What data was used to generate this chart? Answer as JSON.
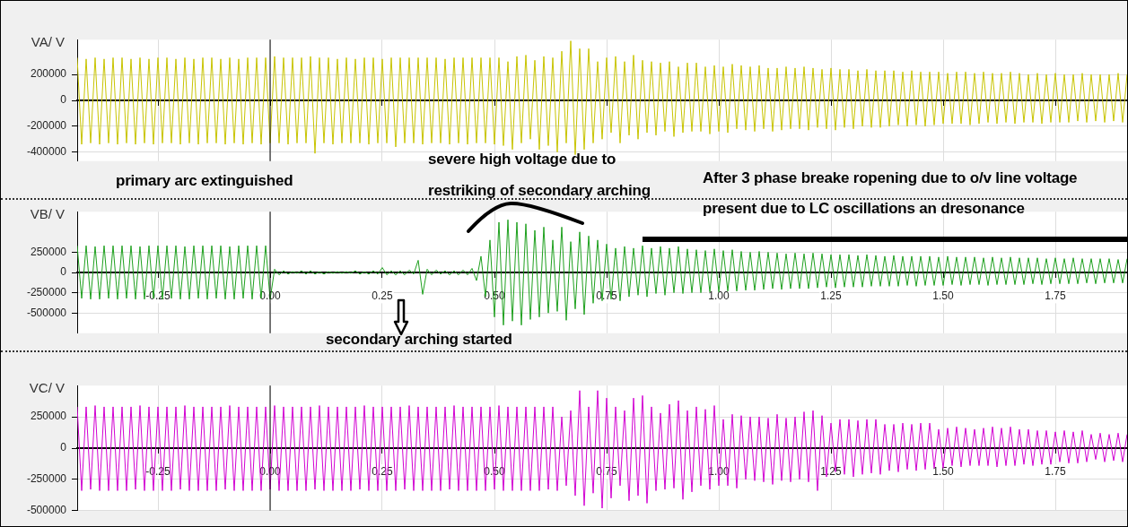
{
  "chart_data": [
    {
      "type": "line",
      "ylabel": "VA/ V",
      "legend": false,
      "grid": true,
      "marker": "none",
      "tick_labels": "y",
      "xlim": [
        -0.43,
        1.91
      ],
      "xticks": [
        {
          "value": -0.25,
          "label": null
        },
        {
          "value": 0,
          "label": null
        },
        {
          "value": 0.25,
          "label": null
        },
        {
          "value": 0.5,
          "label": null
        },
        {
          "value": 0.75,
          "label": null
        },
        {
          "value": 1,
          "label": null
        },
        {
          "value": 1.25,
          "label": null
        },
        {
          "value": 1.5,
          "label": null
        },
        {
          "value": 1.75,
          "label": null
        }
      ],
      "ylim": [
        -470000,
        470000
      ],
      "yticks": [
        200000,
        0,
        -200000,
        -400000
      ],
      "ref_lines": [
        {
          "axis": "x",
          "value": 0,
          "color": "#000000"
        }
      ],
      "x": [
        -0.43,
        -0.42,
        -0.41,
        -0.4,
        -0.39,
        -0.38,
        -0.37,
        -0.36,
        -0.35,
        -0.34,
        -0.33,
        -0.32,
        -0.31,
        -0.3,
        -0.29,
        -0.28,
        -0.27,
        -0.26,
        -0.25,
        -0.24,
        -0.23,
        -0.22,
        -0.21,
        -0.2,
        -0.19,
        -0.18,
        -0.17,
        -0.16,
        -0.15,
        -0.14,
        -0.13,
        -0.12,
        -0.11,
        -0.1,
        -0.09,
        -0.08,
        -0.07,
        -0.06,
        -0.05,
        -0.04,
        -0.03,
        -0.02,
        -0.01,
        0,
        0.01,
        0.02,
        0.03,
        0.04,
        0.05,
        0.06,
        0.07,
        0.08,
        0.09,
        0.1,
        0.11,
        0.12,
        0.13,
        0.14,
        0.15,
        0.16,
        0.17,
        0.18,
        0.19,
        0.2,
        0.21,
        0.22,
        0.23,
        0.24,
        0.25,
        0.26,
        0.27,
        0.28,
        0.29,
        0.3,
        0.31,
        0.32,
        0.33,
        0.34,
        0.35,
        0.36,
        0.37,
        0.38,
        0.39,
        0.4,
        0.41,
        0.42,
        0.43,
        0.44,
        0.45,
        0.46,
        0.47,
        0.48,
        0.49,
        0.5,
        0.51,
        0.52,
        0.53,
        0.54,
        0.55,
        0.56,
        0.57,
        0.58,
        0.59,
        0.6,
        0.61,
        0.62,
        0.63,
        0.64,
        0.65,
        0.66,
        0.67,
        0.68,
        0.69,
        0.7,
        0.71,
        0.72,
        0.73,
        0.74,
        0.75,
        0.76,
        0.77,
        0.78,
        0.79,
        0.8,
        0.81,
        0.82,
        0.83,
        0.84,
        0.85,
        0.86,
        0.87,
        0.88,
        0.89,
        0.9,
        0.91,
        0.92,
        0.93,
        0.94,
        0.95,
        0.96,
        0.97,
        0.98,
        0.99,
        1,
        1.01,
        1.02,
        1.03,
        1.04,
        1.05,
        1.06,
        1.07,
        1.08,
        1.09,
        1.1,
        1.11,
        1.12,
        1.13,
        1.14,
        1.15,
        1.16,
        1.17,
        1.18,
        1.19,
        1.2,
        1.21,
        1.22,
        1.23,
        1.24,
        1.25,
        1.26,
        1.27,
        1.28,
        1.29,
        1.3,
        1.31,
        1.32,
        1.33,
        1.34,
        1.35,
        1.36,
        1.37,
        1.38,
        1.39,
        1.4,
        1.41,
        1.42,
        1.43,
        1.44,
        1.45,
        1.46,
        1.47,
        1.48,
        1.49,
        1.5,
        1.51,
        1.52,
        1.53,
        1.54,
        1.55,
        1.56,
        1.57,
        1.58,
        1.59,
        1.6,
        1.61,
        1.62,
        1.63,
        1.64,
        1.65,
        1.66,
        1.67,
        1.68,
        1.69,
        1.7,
        1.71,
        1.72,
        1.73,
        1.74,
        1.75,
        1.76,
        1.77,
        1.78,
        1.79,
        1.8,
        1.81,
        1.82,
        1.83,
        1.84,
        1.85,
        1.86,
        1.87,
        1.88,
        1.89,
        1.9,
        1.91
      ],
      "series": [
        {
          "color": "#c8c400",
          "values": [
            330000,
            -340000,
            320000,
            -330000,
            330000,
            -340000,
            320000,
            -330000,
            330000,
            -340000,
            330000,
            -330000,
            320000,
            -340000,
            330000,
            -330000,
            320000,
            -340000,
            330000,
            -330000,
            330000,
            -330000,
            320000,
            -340000,
            330000,
            -330000,
            320000,
            -340000,
            330000,
            -330000,
            330000,
            -330000,
            320000,
            -340000,
            330000,
            -330000,
            320000,
            -340000,
            330000,
            -330000,
            330000,
            -340000,
            330000,
            -330000,
            340000,
            -330000,
            330000,
            -340000,
            330000,
            -330000,
            330000,
            -330000,
            340000,
            -410000,
            330000,
            -330000,
            330000,
            -340000,
            320000,
            -330000,
            330000,
            -330000,
            320000,
            -330000,
            330000,
            -340000,
            330000,
            -330000,
            320000,
            -330000,
            330000,
            -360000,
            330000,
            -330000,
            330000,
            -330000,
            330000,
            -340000,
            330000,
            -330000,
            330000,
            -330000,
            320000,
            -340000,
            330000,
            -330000,
            330000,
            -340000,
            330000,
            -330000,
            330000,
            -330000,
            330000,
            -340000,
            330000,
            -350000,
            300000,
            -380000,
            340000,
            -330000,
            350000,
            -300000,
            310000,
            -380000,
            340000,
            -350000,
            330000,
            -400000,
            380000,
            -330000,
            460000,
            -420000,
            400000,
            -380000,
            400000,
            -330000,
            300000,
            -300000,
            330000,
            -250000,
            340000,
            -330000,
            300000,
            -270000,
            350000,
            -300000,
            310000,
            -250000,
            300000,
            -270000,
            290000,
            -240000,
            300000,
            -280000,
            260000,
            -250000,
            290000,
            -240000,
            290000,
            -240000,
            260000,
            -260000,
            270000,
            -240000,
            260000,
            -250000,
            280000,
            -220000,
            270000,
            -230000,
            260000,
            -240000,
            270000,
            -220000,
            250000,
            -240000,
            250000,
            -230000,
            260000,
            -220000,
            250000,
            -220000,
            260000,
            -230000,
            250000,
            -210000,
            240000,
            -220000,
            250000,
            -230000,
            240000,
            -210000,
            240000,
            -220000,
            230000,
            -200000,
            240000,
            -210000,
            230000,
            -210000,
            230000,
            -200000,
            230000,
            -190000,
            220000,
            -200000,
            230000,
            -190000,
            220000,
            -200000,
            220000,
            -190000,
            220000,
            -180000,
            210000,
            -180000,
            220000,
            -180000,
            220000,
            -190000,
            210000,
            -180000,
            220000,
            -170000,
            210000,
            -180000,
            210000,
            -170000,
            220000,
            -180000,
            210000,
            -170000,
            200000,
            -170000,
            210000,
            -180000,
            200000,
            -170000,
            210000,
            -170000,
            200000,
            -170000,
            200000,
            -160000,
            210000,
            -170000,
            200000,
            -160000,
            200000,
            -170000,
            200000,
            -160000,
            210000,
            -170000,
            200000
          ]
        }
      ]
    },
    {
      "type": "line",
      "ylabel": "VB/ V",
      "legend": false,
      "grid": true,
      "marker": "none",
      "xlim": [
        -0.43,
        1.91
      ],
      "xticks": [
        -0.25,
        {
          "value": 0,
          "label": "0.00"
        },
        0.25,
        {
          "value": 0.5,
          "label": "0.50"
        },
        0.75,
        {
          "value": 1,
          "label": "1.00"
        },
        1.25,
        {
          "value": 1.5,
          "label": "1.50"
        },
        1.75
      ],
      "ylim": [
        -750000,
        750000
      ],
      "yticks": [
        250000,
        0,
        -250000,
        -500000
      ],
      "ref_lines": [
        {
          "axis": "x",
          "value": 0,
          "color": "#000000"
        }
      ],
      "annotations": [
        "primary arc extinguished",
        "severe high voltage due to restriking of secondary arching",
        "secondary arching started",
        "After 3 phase breake ropening due to o/v line voltage present due to LC oscillations an dresonance"
      ],
      "x": [
        -0.43,
        -0.42,
        -0.41,
        -0.4,
        -0.39,
        -0.38,
        -0.37,
        -0.36,
        -0.35,
        -0.34,
        -0.33,
        -0.32,
        -0.31,
        -0.3,
        -0.29,
        -0.28,
        -0.27,
        -0.26,
        -0.25,
        -0.24,
        -0.23,
        -0.22,
        -0.21,
        -0.2,
        -0.19,
        -0.18,
        -0.17,
        -0.16,
        -0.15,
        -0.14,
        -0.13,
        -0.12,
        -0.11,
        -0.1,
        -0.09,
        -0.08,
        -0.07,
        -0.06,
        -0.05,
        -0.04,
        -0.03,
        -0.02,
        -0.01,
        0,
        0.01,
        0.02,
        0.03,
        0.04,
        0.05,
        0.06,
        0.07,
        0.08,
        0.09,
        0.1,
        0.11,
        0.12,
        0.13,
        0.14,
        0.15,
        0.16,
        0.17,
        0.18,
        0.19,
        0.2,
        0.21,
        0.22,
        0.23,
        0.24,
        0.25,
        0.26,
        0.27,
        0.28,
        0.29,
        0.3,
        0.31,
        0.32,
        0.33,
        0.34,
        0.35,
        0.36,
        0.37,
        0.38,
        0.39,
        0.4,
        0.41,
        0.42,
        0.43,
        0.44,
        0.45,
        0.46,
        0.47,
        0.48,
        0.49,
        0.5,
        0.51,
        0.52,
        0.53,
        0.54,
        0.55,
        0.56,
        0.57,
        0.58,
        0.59,
        0.6,
        0.61,
        0.62,
        0.63,
        0.64,
        0.65,
        0.66,
        0.67,
        0.68,
        0.69,
        0.7,
        0.71,
        0.72,
        0.73,
        0.74,
        0.75,
        0.76,
        0.77,
        0.78,
        0.79,
        0.8,
        0.81,
        0.82,
        0.83,
        0.84,
        0.85,
        0.86,
        0.87,
        0.88,
        0.89,
        0.9,
        0.91,
        0.92,
        0.93,
        0.94,
        0.95,
        0.96,
        0.97,
        0.98,
        0.99,
        1,
        1.01,
        1.02,
        1.03,
        1.04,
        1.05,
        1.06,
        1.07,
        1.08,
        1.09,
        1.1,
        1.11,
        1.12,
        1.13,
        1.14,
        1.15,
        1.16,
        1.17,
        1.18,
        1.19,
        1.2,
        1.21,
        1.22,
        1.23,
        1.24,
        1.25,
        1.26,
        1.27,
        1.28,
        1.29,
        1.3,
        1.31,
        1.32,
        1.33,
        1.34,
        1.35,
        1.36,
        1.37,
        1.38,
        1.39,
        1.4,
        1.41,
        1.42,
        1.43,
        1.44,
        1.45,
        1.46,
        1.47,
        1.48,
        1.49,
        1.5,
        1.51,
        1.52,
        1.53,
        1.54,
        1.55,
        1.56,
        1.57,
        1.58,
        1.59,
        1.6,
        1.61,
        1.62,
        1.63,
        1.64,
        1.65,
        1.66,
        1.67,
        1.68,
        1.69,
        1.7,
        1.71,
        1.72,
        1.73,
        1.74,
        1.75,
        1.76,
        1.77,
        1.78,
        1.79,
        1.8,
        1.81,
        1.82,
        1.83,
        1.84,
        1.85,
        1.86,
        1.87,
        1.88,
        1.89,
        1.9,
        1.91
      ],
      "series": [
        {
          "color": "#1ea01e",
          "values": [
            330000,
            -320000,
            330000,
            -330000,
            320000,
            -330000,
            330000,
            -320000,
            330000,
            -330000,
            330000,
            -320000,
            330000,
            -330000,
            320000,
            -330000,
            330000,
            -320000,
            330000,
            -330000,
            330000,
            -320000,
            330000,
            -330000,
            320000,
            -330000,
            330000,
            -320000,
            330000,
            -330000,
            330000,
            -320000,
            330000,
            -330000,
            320000,
            -330000,
            330000,
            -320000,
            330000,
            -330000,
            330000,
            -320000,
            330000,
            -330000,
            40000,
            -30000,
            20000,
            -20000,
            10000,
            -10000,
            20000,
            -20000,
            20000,
            -20000,
            10000,
            -20000,
            10000,
            -10000,
            10000,
            -10000,
            10000,
            -10000,
            20000,
            -20000,
            10000,
            -20000,
            20000,
            -20000,
            60000,
            -30000,
            20000,
            -30000,
            20000,
            -30000,
            30000,
            -20000,
            150000,
            -270000,
            40000,
            -30000,
            30000,
            -20000,
            20000,
            -30000,
            20000,
            -30000,
            30000,
            -30000,
            50000,
            -100000,
            200000,
            -300000,
            400000,
            -550000,
            620000,
            -650000,
            650000,
            -600000,
            620000,
            -650000,
            600000,
            -580000,
            520000,
            -550000,
            560000,
            -500000,
            400000,
            -480000,
            560000,
            -590000,
            380000,
            -450000,
            500000,
            -520000,
            450000,
            -380000,
            400000,
            -350000,
            350000,
            -330000,
            300000,
            -350000,
            320000,
            -300000,
            300000,
            -280000,
            330000,
            -300000,
            300000,
            -260000,
            320000,
            -280000,
            300000,
            -250000,
            320000,
            -260000,
            290000,
            -250000,
            280000,
            -250000,
            270000,
            -240000,
            290000,
            -240000,
            270000,
            -230000,
            280000,
            -230000,
            260000,
            -220000,
            250000,
            -220000,
            260000,
            -210000,
            250000,
            -200000,
            240000,
            -210000,
            230000,
            -200000,
            240000,
            -200000,
            230000,
            -200000,
            240000,
            -190000,
            230000,
            -180000,
            220000,
            -190000,
            220000,
            -180000,
            220000,
            -180000,
            210000,
            -180000,
            220000,
            -170000,
            210000,
            -170000,
            200000,
            -170000,
            210000,
            -170000,
            200000,
            -160000,
            200000,
            -170000,
            200000,
            -160000,
            200000,
            -160000,
            190000,
            -160000,
            200000,
            -150000,
            190000,
            -160000,
            190000,
            -150000,
            190000,
            -150000,
            180000,
            -160000,
            190000,
            -150000,
            180000,
            -150000,
            190000,
            -150000,
            180000,
            -150000,
            180000,
            -140000,
            180000,
            -150000,
            170000,
            -140000,
            180000,
            -140000,
            170000,
            -140000,
            180000,
            -140000,
            170000,
            -130000,
            170000,
            -140000,
            170000,
            -130000,
            170000,
            -130000,
            160000,
            -130000,
            170000
          ]
        }
      ]
    },
    {
      "type": "line",
      "ylabel": "VC/ V",
      "legend": false,
      "grid": true,
      "marker": "none",
      "xlim": [
        -0.43,
        1.91
      ],
      "xticks": [
        -0.25,
        {
          "value": 0,
          "label": "0.00"
        },
        0.25,
        {
          "value": 0.5,
          "label": "0.50"
        },
        0.75,
        {
          "value": 1,
          "label": "1.00"
        },
        1.25,
        {
          "value": 1.5,
          "label": "1.50"
        },
        1.75
      ],
      "ylim": [
        -500000,
        500000
      ],
      "yticks": [
        250000,
        0,
        -250000,
        -500000
      ],
      "ref_lines": [
        {
          "axis": "x",
          "value": 0,
          "color": "#000000"
        }
      ],
      "x": [
        -0.43,
        -0.42,
        -0.41,
        -0.4,
        -0.39,
        -0.38,
        -0.37,
        -0.36,
        -0.35,
        -0.34,
        -0.33,
        -0.32,
        -0.31,
        -0.3,
        -0.29,
        -0.28,
        -0.27,
        -0.26,
        -0.25,
        -0.24,
        -0.23,
        -0.22,
        -0.21,
        -0.2,
        -0.19,
        -0.18,
        -0.17,
        -0.16,
        -0.15,
        -0.14,
        -0.13,
        -0.12,
        -0.11,
        -0.1,
        -0.09,
        -0.08,
        -0.07,
        -0.06,
        -0.05,
        -0.04,
        -0.03,
        -0.02,
        -0.01,
        0,
        0.01,
        0.02,
        0.03,
        0.04,
        0.05,
        0.06,
        0.07,
        0.08,
        0.09,
        0.1,
        0.11,
        0.12,
        0.13,
        0.14,
        0.15,
        0.16,
        0.17,
        0.18,
        0.19,
        0.2,
        0.21,
        0.22,
        0.23,
        0.24,
        0.25,
        0.26,
        0.27,
        0.28,
        0.29,
        0.3,
        0.31,
        0.32,
        0.33,
        0.34,
        0.35,
        0.36,
        0.37,
        0.38,
        0.39,
        0.4,
        0.41,
        0.42,
        0.43,
        0.44,
        0.45,
        0.46,
        0.47,
        0.48,
        0.49,
        0.5,
        0.51,
        0.52,
        0.53,
        0.54,
        0.55,
        0.56,
        0.57,
        0.58,
        0.59,
        0.6,
        0.61,
        0.62,
        0.63,
        0.64,
        0.65,
        0.66,
        0.67,
        0.68,
        0.69,
        0.7,
        0.71,
        0.72,
        0.73,
        0.74,
        0.75,
        0.76,
        0.77,
        0.78,
        0.79,
        0.8,
        0.81,
        0.82,
        0.83,
        0.84,
        0.85,
        0.86,
        0.87,
        0.88,
        0.89,
        0.9,
        0.91,
        0.92,
        0.93,
        0.94,
        0.95,
        0.96,
        0.97,
        0.98,
        0.99,
        1,
        1.01,
        1.02,
        1.03,
        1.04,
        1.05,
        1.06,
        1.07,
        1.08,
        1.09,
        1.1,
        1.11,
        1.12,
        1.13,
        1.14,
        1.15,
        1.16,
        1.17,
        1.18,
        1.19,
        1.2,
        1.21,
        1.22,
        1.23,
        1.24,
        1.25,
        1.26,
        1.27,
        1.28,
        1.29,
        1.3,
        1.31,
        1.32,
        1.33,
        1.34,
        1.35,
        1.36,
        1.37,
        1.38,
        1.39,
        1.4,
        1.41,
        1.42,
        1.43,
        1.44,
        1.45,
        1.46,
        1.47,
        1.48,
        1.49,
        1.5,
        1.51,
        1.52,
        1.53,
        1.54,
        1.55,
        1.56,
        1.57,
        1.58,
        1.59,
        1.6,
        1.61,
        1.62,
        1.63,
        1.64,
        1.65,
        1.66,
        1.67,
        1.68,
        1.69,
        1.7,
        1.71,
        1.72,
        1.73,
        1.74,
        1.75,
        1.76,
        1.77,
        1.78,
        1.79,
        1.8,
        1.81,
        1.82,
        1.83,
        1.84,
        1.85,
        1.86,
        1.87,
        1.88,
        1.89,
        1.9,
        1.91
      ],
      "series": [
        {
          "color": "#d200d2",
          "values": [
            330000,
            -340000,
            330000,
            -330000,
            340000,
            -340000,
            330000,
            -340000,
            330000,
            -340000,
            330000,
            -340000,
            330000,
            -330000,
            340000,
            -340000,
            330000,
            -340000,
            330000,
            -340000,
            330000,
            -340000,
            330000,
            -330000,
            340000,
            -340000,
            330000,
            -340000,
            330000,
            -340000,
            330000,
            -340000,
            330000,
            -330000,
            340000,
            -340000,
            330000,
            -340000,
            330000,
            -340000,
            330000,
            -340000,
            330000,
            -330000,
            340000,
            -340000,
            330000,
            -340000,
            330000,
            -340000,
            330000,
            -340000,
            330000,
            -330000,
            340000,
            -340000,
            330000,
            -340000,
            330000,
            -340000,
            330000,
            -340000,
            330000,
            -330000,
            340000,
            -340000,
            330000,
            -340000,
            330000,
            -340000,
            330000,
            -340000,
            330000,
            -330000,
            340000,
            -340000,
            330000,
            -340000,
            330000,
            -340000,
            330000,
            -340000,
            330000,
            -330000,
            340000,
            -340000,
            330000,
            -340000,
            330000,
            -340000,
            330000,
            -340000,
            330000,
            -330000,
            340000,
            -340000,
            330000,
            -340000,
            330000,
            -340000,
            330000,
            -340000,
            330000,
            -340000,
            330000,
            -330000,
            330000,
            -340000,
            250000,
            -300000,
            300000,
            -380000,
            460000,
            -460000,
            330000,
            -360000,
            460000,
            -480000,
            400000,
            -400000,
            330000,
            -300000,
            300000,
            -420000,
            400000,
            -380000,
            420000,
            -440000,
            330000,
            -340000,
            280000,
            -330000,
            350000,
            -320000,
            380000,
            -410000,
            300000,
            -350000,
            330000,
            -300000,
            310000,
            -330000,
            340000,
            -300000,
            230000,
            -300000,
            270000,
            -320000,
            260000,
            -250000,
            250000,
            -260000,
            250000,
            -270000,
            240000,
            -290000,
            270000,
            -260000,
            240000,
            -270000,
            250000,
            -250000,
            290000,
            -270000,
            300000,
            -340000,
            260000,
            -230000,
            200000,
            -190000,
            230000,
            -210000,
            230000,
            -230000,
            220000,
            -210000,
            230000,
            -200000,
            230000,
            -210000,
            190000,
            -180000,
            190000,
            -190000,
            200000,
            -170000,
            190000,
            -180000,
            200000,
            -170000,
            200000,
            -160000,
            150000,
            -160000,
            160000,
            -140000,
            170000,
            -150000,
            160000,
            -140000,
            150000,
            -140000,
            160000,
            -140000,
            170000,
            -150000,
            160000,
            -140000,
            170000,
            -140000,
            150000,
            -130000,
            150000,
            -140000,
            140000,
            -130000,
            140000,
            -130000,
            130000,
            -110000,
            140000,
            -120000,
            130000,
            -120000,
            140000,
            -110000,
            110000,
            -90000,
            120000,
            -110000,
            110000,
            -100000,
            120000,
            -110000,
            110000
          ]
        }
      ]
    }
  ]
}
